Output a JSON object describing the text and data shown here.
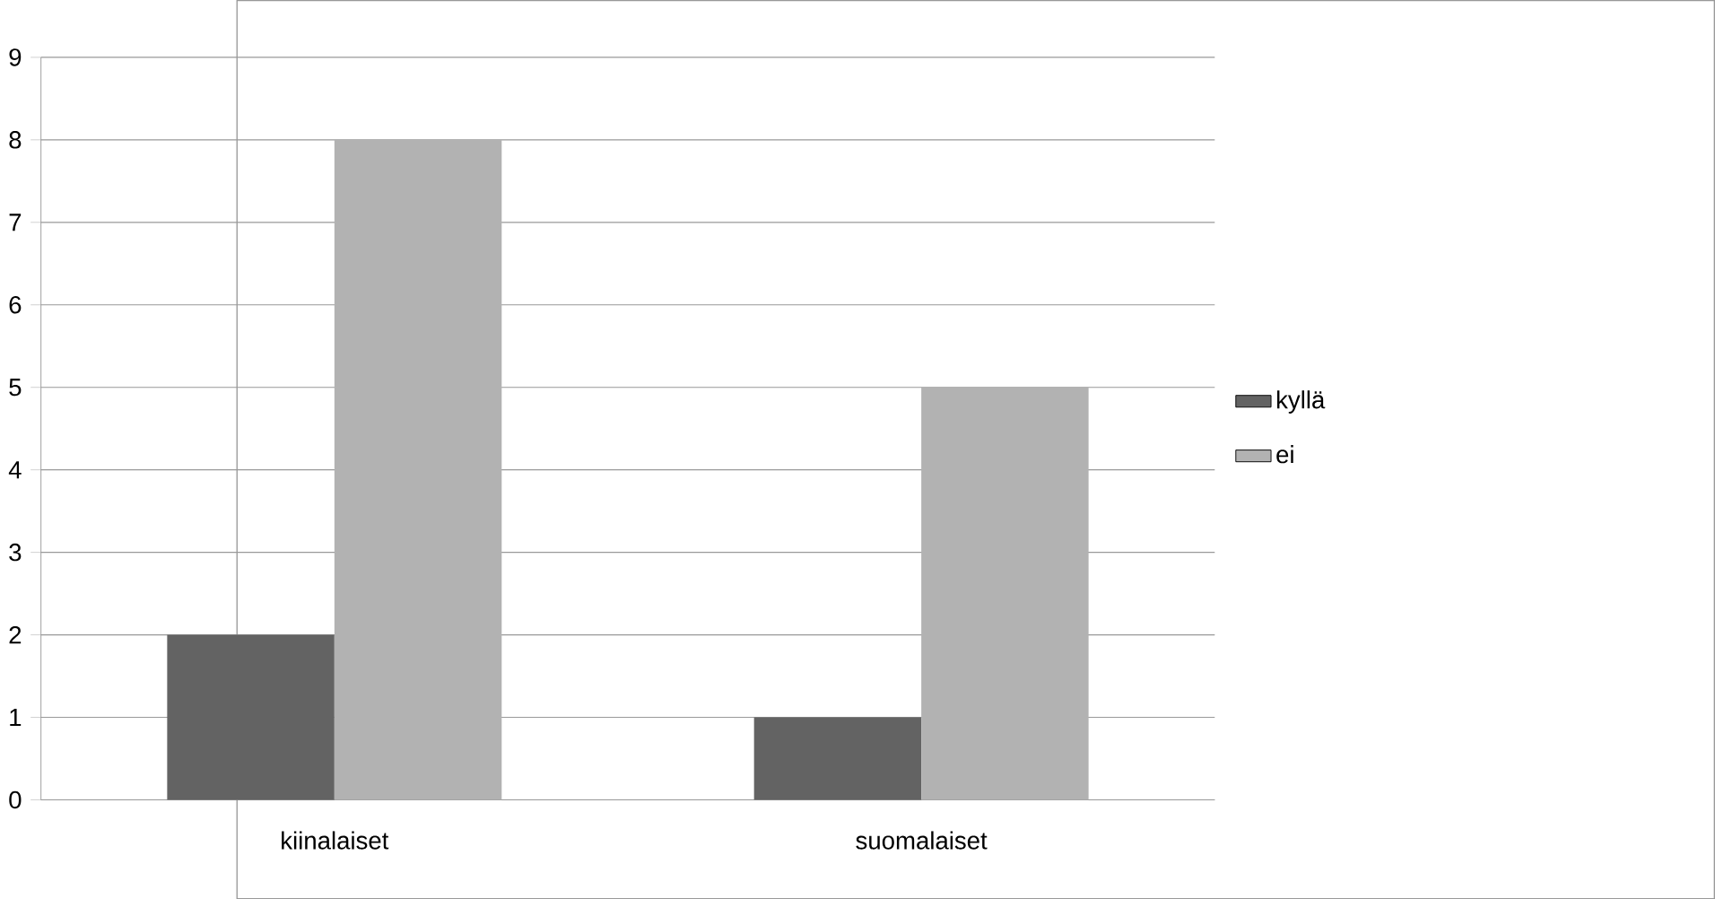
{
  "chart_data": {
    "type": "bar",
    "categories": [
      "kiinalaiset",
      "suomalaiset"
    ],
    "series": [
      {
        "name": "kyllä",
        "color": "#636363",
        "values": [
          2,
          1
        ]
      },
      {
        "name": "ei",
        "color": "#b2b2b2",
        "values": [
          8,
          5
        ]
      }
    ],
    "ylim": [
      0,
      9
    ],
    "yticks": [
      0,
      1,
      2,
      3,
      4,
      5,
      6,
      7,
      8,
      9
    ],
    "grid": "y",
    "legend": "right"
  }
}
